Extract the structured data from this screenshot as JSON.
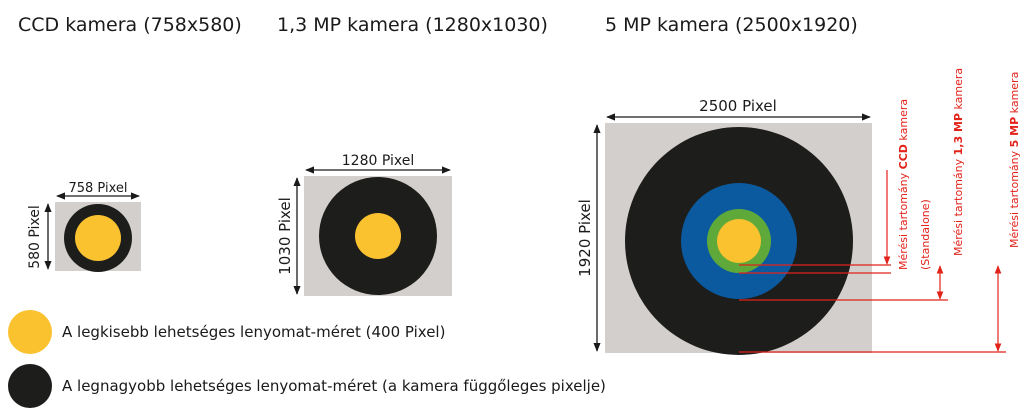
{
  "titles": {
    "ccd": "CCD kamera (758x580)",
    "mp13": "1,3 MP kamera (1280x1030)",
    "mp5": "5 MP kamera (2500x1920)"
  },
  "dimensions": {
    "ccd_width": "758 Pixel",
    "ccd_height": "580 Pixel",
    "mp13_width": "1280 Pixel",
    "mp13_height": "1030 Pixel",
    "mp5_width": "2500 Pixel",
    "mp5_height": "1920 Pixel"
  },
  "ranges": {
    "ccd_prefix": "Mérési tartomány ",
    "ccd_bold": "CCD",
    "ccd_suffix": " kamera",
    "ccd_note": "(Standalone)",
    "mp13_prefix": "Mérési tartomány ",
    "mp13_bold": "1,3 MP",
    "mp13_suffix": " kamera",
    "mp5_prefix": "Mérési tartomány ",
    "mp5_bold": "5 MP",
    "mp5_suffix": " kamera"
  },
  "legend": {
    "smallest": "A legkisebb lehetséges lenyomat-méret (400 Pixel)",
    "largest": "A legnagyobb lehetséges lenyomat-méret (a kamera függőleges pixelje)"
  },
  "colors": {
    "sensor": "#d3cfcc",
    "footprint_max": "#1d1d1b",
    "footprint_min": "#fbc230",
    "ring_blue": "#0b5aa0",
    "ring_green": "#5ea939",
    "annotation": "#e2231a"
  }
}
